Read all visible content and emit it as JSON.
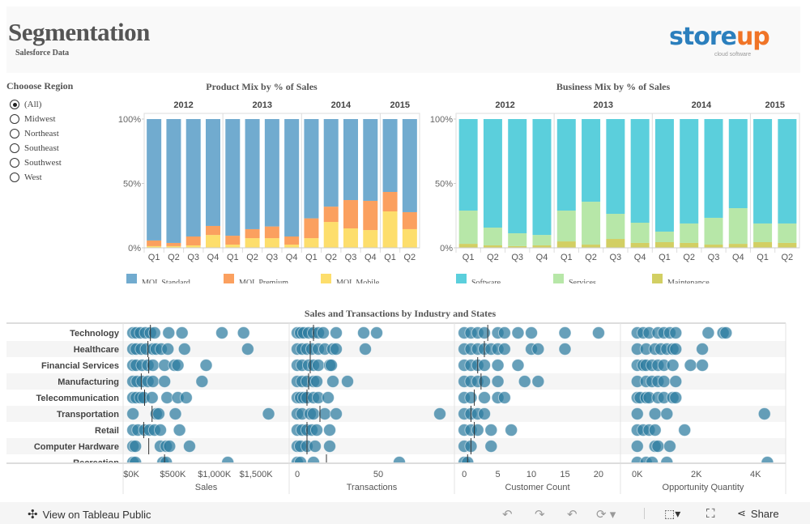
{
  "header": {
    "title": "Segmentation",
    "subtitle": "Salesforce Data",
    "logo_text": "storeup",
    "logo_tagline": "cloud software"
  },
  "filter": {
    "title": "Chooose Region",
    "selected": "(All)",
    "options": [
      "(All)",
      "Midwest",
      "Northeast",
      "Southeast",
      "Southwest",
      "West"
    ]
  },
  "colors": {
    "standard": "#71abcf",
    "premium": "#fba05f",
    "mobile": "#fdde6c",
    "software": "#5bcfdc",
    "services": "#b7e7a8",
    "maintenance": "#d2cf63",
    "dot": "#2c7ba0",
    "logo_blue": "#2b7fbd",
    "logo_orange": "#f07427"
  },
  "chart_data": [
    {
      "type": "bar",
      "stacked": true,
      "title": "Product Mix by % of Sales",
      "years": [
        "2012",
        "2013",
        "2014",
        "2015"
      ],
      "year_quarter_counts": [
        4,
        4,
        4,
        2
      ],
      "categories": [
        "Q1",
        "Q2",
        "Q3",
        "Q4",
        "Q1",
        "Q2",
        "Q3",
        "Q4",
        "Q1",
        "Q2",
        "Q3",
        "Q4",
        "Q1",
        "Q2"
      ],
      "yticks": [
        "0%",
        "50%",
        "100%"
      ],
      "ylim": [
        0,
        100
      ],
      "series": [
        {
          "name": "MQL Mobile",
          "color": "#fdde6c",
          "values": [
            1.3,
            1.3,
            1.9,
            10,
            2.5,
            7.5,
            7.5,
            2.5,
            7.5,
            20.1,
            15.1,
            13.8,
            28.3,
            14.5
          ]
        },
        {
          "name": "MQL Premium",
          "color": "#fba05f",
          "values": [
            4.4,
            2.5,
            6.9,
            7,
            6.9,
            7,
            9.1,
            6.3,
            15.4,
            11.9,
            22,
            22.7,
            15.1,
            13.2
          ]
        },
        {
          "name": "MQL Standard",
          "color": "#71abcf",
          "values": [
            94.3,
            96.2,
            91.2,
            83,
            90.6,
            85.5,
            83.4,
            91.2,
            77.1,
            68,
            62.9,
            63.5,
            56.6,
            72.3
          ]
        }
      ],
      "legend": [
        "MQL Standard",
        "MQL Premium",
        "MQL Mobile"
      ]
    },
    {
      "type": "bar",
      "stacked": true,
      "title": "Business Mix by % of Sales",
      "years": [
        "2012",
        "2013",
        "2014",
        "2015"
      ],
      "year_quarter_counts": [
        4,
        4,
        4,
        2
      ],
      "categories": [
        "Q1",
        "Q2",
        "Q3",
        "Q4",
        "Q1",
        "Q2",
        "Q3",
        "Q4",
        "Q1",
        "Q2",
        "Q3",
        "Q4",
        "Q1",
        "Q2"
      ],
      "yticks": [
        "0%",
        "50%",
        "100%"
      ],
      "ylim": [
        0,
        100
      ],
      "series": [
        {
          "name": "Maintenance",
          "color": "#d2cf63",
          "values": [
            3.1,
            1.9,
            1.3,
            1.9,
            5,
            2.5,
            6.9,
            3.8,
            4.4,
            3.8,
            2.5,
            3.1,
            4.4,
            3.8
          ]
        },
        {
          "name": "Services",
          "color": "#b7e7a8",
          "values": [
            25.8,
            13.8,
            10,
            8.1,
            23.9,
            33.3,
            19.5,
            15.7,
            8.2,
            15.1,
            20.8,
            27.7,
            14.5,
            15.1
          ]
        },
        {
          "name": "Software",
          "color": "#5bcfdc",
          "values": [
            71.1,
            84.3,
            88.7,
            90,
            71.1,
            64.2,
            73.6,
            80.5,
            87.4,
            81.1,
            76.7,
            69.2,
            81.1,
            81.1
          ]
        }
      ],
      "legend": [
        "Software",
        "Services",
        "Maintenance"
      ]
    },
    {
      "type": "scatter",
      "title": "Sales and Transactions by Industry and States",
      "rows": [
        "Technology",
        "Healthcare",
        "Financial Services",
        "Manufacturing",
        "Telecommunication",
        "Transportation",
        "Retail",
        "Computer Hardware",
        "Recreation"
      ],
      "panels": [
        {
          "xlabel": "Sales",
          "ticks": [
            {
              "v": 0,
              "label": "$0K"
            },
            {
              "v": 500,
              "label": "$500K"
            },
            {
              "v": 1000,
              "label": "$1,000K"
            },
            {
              "v": 1500,
              "label": "$1,500K"
            }
          ],
          "xlim": [
            -20,
            1820
          ],
          "points": [
            [
              20,
              60,
              110,
              170,
              230,
              280,
              450,
              610,
              1090,
              1350
            ],
            [
              20,
              60,
              120,
              180,
              260,
              300,
              360,
              440,
              640,
              1400
            ],
            [
              20,
              60,
              130,
              200,
              260,
              400,
              520,
              560,
              900
            ],
            [
              20,
              70,
              130,
              200,
              260,
              400,
              850
            ],
            [
              20,
              60,
              110,
              150,
              250,
              430,
              560,
              660
            ],
            [
              20,
              300,
              330,
              530,
              1650
            ],
            [
              20,
              80,
              160,
              220,
              280,
              350,
              580
            ],
            [
              20,
              50,
              350,
              420,
              460,
              700
            ],
            [
              20,
              50,
              380,
              420,
              1160
            ]
          ],
          "reference": [
            230,
            200,
            210,
            120,
            160,
            250,
            150,
            210,
            400
          ]
        },
        {
          "xlabel": "Transactions",
          "ticks": [
            {
              "v": 0,
              "label": "0"
            },
            {
              "v": 50,
              "label": "50"
            }
          ],
          "xlim": [
            -1,
            93
          ],
          "points": [
            [
              0,
              2,
              4,
              7,
              10,
              13,
              16,
              24,
              41,
              49
            ],
            [
              0,
              3,
              6,
              9,
              13,
              17,
              22,
              24,
              42
            ],
            [
              0,
              3,
              7,
              10,
              13,
              20,
              21
            ],
            [
              0,
              3,
              6,
              10,
              12,
              22,
              31
            ],
            [
              0,
              2,
              4,
              6,
              10,
              13,
              19
            ],
            [
              0,
              3,
              8,
              10,
              17,
              24,
              88
            ],
            [
              0,
              3,
              6,
              9,
              12,
              20
            ],
            [
              0,
              2,
              6,
              11,
              20
            ],
            [
              0,
              2,
              10,
              63
            ]
          ],
          "reference": [
            10,
            8,
            8,
            7,
            6,
            14,
            6,
            6,
            18
          ]
        },
        {
          "xlabel": "Customer Count",
          "ticks": [
            {
              "v": 0,
              "label": "0"
            },
            {
              "v": 5,
              "label": "5"
            },
            {
              "v": 10,
              "label": "10"
            },
            {
              "v": 15,
              "label": "15"
            },
            {
              "v": 20,
              "label": "20"
            }
          ],
          "xlim": [
            -0.5,
            22.3
          ],
          "points": [
            [
              0,
              1,
              2,
              3,
              5,
              6,
              8,
              10,
              15,
              20
            ],
            [
              0,
              1,
              2,
              3,
              4,
              5,
              6,
              10,
              11,
              15
            ],
            [
              0,
              1,
              2,
              3,
              5,
              8
            ],
            [
              0,
              1,
              2,
              3,
              5,
              9,
              11
            ],
            [
              0,
              1,
              3,
              5,
              6
            ],
            [
              0,
              1,
              2,
              3
            ],
            [
              0,
              1,
              2,
              4,
              7
            ],
            [
              0,
              1,
              4
            ],
            [
              0,
              0.5
            ]
          ],
          "reference": [
            3.5,
            3,
            2,
            2.5,
            1.5,
            1,
            1.5,
            1,
            0.5
          ]
        },
        {
          "xlabel": "Opportunity Quantity",
          "ticks": [
            {
              "v": 0,
              "label": "0K"
            },
            {
              "v": 2,
              "label": "2K"
            },
            {
              "v": 4,
              "label": "4K"
            }
          ],
          "xlim": [
            -0.35,
            4.8
          ],
          "points": [
            [
              0,
              0.2,
              0.4,
              0.7,
              0.9,
              1.1,
              1.3,
              2.4,
              2.9,
              3.0
            ],
            [
              0,
              0.3,
              0.6,
              0.8,
              1.0,
              1.2,
              1.3,
              2.2
            ],
            [
              0,
              0.2,
              0.3,
              0.5,
              0.7,
              0.9,
              1.2,
              1.8,
              2.2
            ],
            [
              0,
              0.3,
              0.5,
              0.7,
              0.9,
              1.3
            ],
            [
              0,
              0.1,
              0.3,
              0.4,
              0.7,
              0.9,
              1.2,
              1.3
            ],
            [
              0,
              0.6,
              1.0,
              4.3
            ],
            [
              0,
              0.2,
              0.4,
              0.6,
              1.6
            ],
            [
              0,
              0.6,
              0.7,
              1.1
            ],
            [
              0,
              0.3,
              0.5,
              1.0,
              4.4
            ]
          ],
          "reference": null
        }
      ]
    }
  ],
  "toolbar": {
    "view_label": "View on Tableau Public",
    "share_label": "Share",
    "icons": [
      "tableau-icon",
      "undo-icon",
      "redo-icon",
      "revert-icon",
      "refresh-icon",
      "download-icon",
      "fullscreen-icon",
      "share-icon"
    ]
  }
}
